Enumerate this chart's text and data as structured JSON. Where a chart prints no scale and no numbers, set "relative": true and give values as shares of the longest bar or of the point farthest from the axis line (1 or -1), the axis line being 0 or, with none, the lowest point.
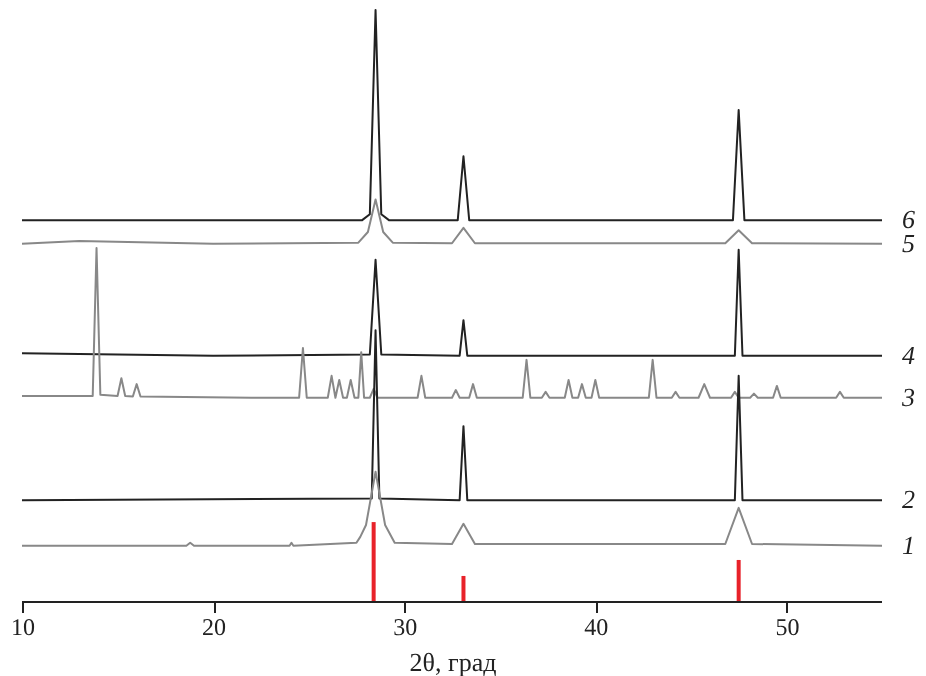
{
  "chart_data": {
    "type": "line",
    "relative": true,
    "xlabel": "2θ, град",
    "xlim": [
      10,
      55
    ],
    "xticks": [
      10,
      20,
      30,
      40,
      50
    ],
    "series": [
      {
        "name": "6",
        "color": "#222222",
        "x": [
          10,
          20,
          27.8,
          28.2,
          28.5,
          28.8,
          29.2,
          32.8,
          33.1,
          33.4,
          47.2,
          47.5,
          47.8,
          55
        ],
        "values": [
          0.645,
          0.645,
          0.645,
          0.655,
          1.0,
          0.655,
          0.645,
          0.645,
          0.753,
          0.645,
          0.645,
          0.831,
          0.645,
          0.645
        ]
      },
      {
        "name": "5",
        "color": "#888888",
        "x": [
          10,
          13,
          20,
          27.6,
          28.1,
          28.5,
          28.9,
          29.4,
          32.5,
          33.1,
          33.7,
          46.8,
          47.5,
          48.2,
          55
        ],
        "values": [
          0.605,
          0.61,
          0.605,
          0.607,
          0.625,
          0.68,
          0.625,
          0.607,
          0.606,
          0.632,
          0.606,
          0.606,
          0.628,
          0.606,
          0.605
        ]
      },
      {
        "name": "4",
        "color": "#222222",
        "x": [
          10,
          20,
          28.2,
          28.5,
          28.8,
          32.9,
          33.1,
          33.3,
          47.3,
          47.5,
          47.7,
          55
        ],
        "values": [
          0.42,
          0.416,
          0.418,
          0.578,
          0.418,
          0.416,
          0.476,
          0.416,
          0.416,
          0.595,
          0.416,
          0.416
        ]
      },
      {
        "name": "3",
        "color": "#888888",
        "x": [
          10,
          13.7,
          13.9,
          14.1,
          15.0,
          15.2,
          15.4,
          15.8,
          16.0,
          16.2,
          22,
          24.5,
          24.7,
          24.9,
          26.0,
          26.2,
          26.4,
          26.6,
          26.8,
          27.0,
          27.2,
          27.4,
          27.6,
          27.75,
          27.9,
          28.2,
          28.4,
          28.6,
          30.7,
          30.9,
          31.1,
          32.5,
          32.7,
          32.9,
          33.4,
          33.6,
          33.8,
          36.2,
          36.4,
          36.6,
          37.2,
          37.4,
          37.6,
          38.4,
          38.6,
          38.8,
          39.1,
          39.3,
          39.5,
          39.8,
          40.0,
          40.2,
          42.8,
          43.0,
          43.2,
          44.0,
          44.2,
          44.4,
          45.4,
          45.7,
          46.0,
          47.1,
          47.3,
          47.5,
          48.1,
          48.3,
          48.5,
          49.3,
          49.5,
          49.7,
          52.6,
          52.8,
          53.0,
          55
        ],
        "values": [
          0.348,
          0.348,
          0.598,
          0.35,
          0.348,
          0.378,
          0.348,
          0.347,
          0.368,
          0.347,
          0.345,
          0.345,
          0.429,
          0.345,
          0.345,
          0.382,
          0.345,
          0.375,
          0.345,
          0.345,
          0.375,
          0.345,
          0.345,
          0.422,
          0.345,
          0.345,
          0.36,
          0.345,
          0.345,
          0.382,
          0.345,
          0.345,
          0.358,
          0.345,
          0.345,
          0.368,
          0.345,
          0.345,
          0.409,
          0.345,
          0.345,
          0.355,
          0.345,
          0.345,
          0.375,
          0.345,
          0.345,
          0.368,
          0.345,
          0.345,
          0.375,
          0.345,
          0.345,
          0.409,
          0.345,
          0.345,
          0.355,
          0.345,
          0.345,
          0.368,
          0.345,
          0.345,
          0.355,
          0.345,
          0.345,
          0.352,
          0.345,
          0.345,
          0.365,
          0.345,
          0.345,
          0.355,
          0.345,
          0.345
        ]
      },
      {
        "name": "2",
        "color": "#222222",
        "x": [
          10,
          28.3,
          28.5,
          28.7,
          32.9,
          33.1,
          33.3,
          47.3,
          47.5,
          47.7,
          55
        ],
        "values": [
          0.172,
          0.175,
          0.459,
          0.175,
          0.172,
          0.297,
          0.172,
          0.172,
          0.382,
          0.172,
          0.172
        ]
      },
      {
        "name": "1",
        "color": "#888888",
        "x": [
          10,
          18.6,
          18.8,
          19.0,
          24.0,
          24.1,
          24.2,
          27.5,
          27.7,
          28.0,
          28.5,
          29.0,
          29.5,
          32.5,
          33.1,
          33.7,
          46.8,
          47.5,
          48.2,
          55
        ],
        "values": [
          0.095,
          0.095,
          0.1,
          0.095,
          0.095,
          0.1,
          0.095,
          0.1,
          0.11,
          0.13,
          0.22,
          0.13,
          0.1,
          0.098,
          0.132,
          0.098,
          0.098,
          0.159,
          0.098,
          0.095
        ]
      },
      {
        "type": "bar",
        "color": "#e8222a",
        "x": [
          28.4,
          33.1,
          47.5
        ],
        "values": [
          0.135,
          0.044,
          0.071
        ]
      }
    ]
  }
}
